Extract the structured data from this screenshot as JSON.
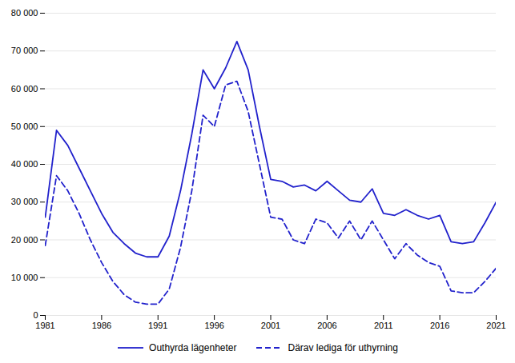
{
  "chart_data": {
    "type": "line",
    "x": [
      1981,
      1982,
      1983,
      1984,
      1985,
      1986,
      1987,
      1988,
      1989,
      1990,
      1991,
      1992,
      1993,
      1994,
      1995,
      1996,
      1997,
      1998,
      1999,
      2000,
      2001,
      2002,
      2003,
      2004,
      2005,
      2006,
      2007,
      2008,
      2009,
      2010,
      2011,
      2012,
      2013,
      2014,
      2015,
      2016,
      2017,
      2018,
      2019,
      2020,
      2021
    ],
    "series": [
      {
        "name": "Outhyrda lägenheter",
        "color": "#2222cc",
        "line_style": "solid",
        "values": [
          26000,
          49000,
          45000,
          39000,
          33000,
          27000,
          22000,
          19000,
          16500,
          15500,
          15500,
          21000,
          33000,
          48000,
          65000,
          60000,
          65500,
          72500,
          65000,
          50000,
          36000,
          35500,
          34000,
          34500,
          33000,
          35500,
          33000,
          30500,
          30000,
          33500,
          27000,
          26500,
          28000,
          26500,
          25500,
          26500,
          19500,
          19000,
          19500,
          24500,
          30000
        ]
      },
      {
        "name": "Därav lediga för uthyrning",
        "color": "#2222cc",
        "line_style": "dashed",
        "values": [
          18500,
          37000,
          33000,
          27000,
          20000,
          14000,
          9000,
          5500,
          3500,
          3000,
          3000,
          7000,
          18000,
          33000,
          53000,
          50000,
          61000,
          62000,
          54000,
          40000,
          26000,
          25500,
          20000,
          19000,
          25500,
          24500,
          20500,
          25000,
          20000,
          25000,
          20000,
          15000,
          19000,
          16000,
          14000,
          13000,
          6500,
          6000,
          6000,
          9000,
          12500
        ]
      }
    ],
    "xlim": [
      1981,
      2021
    ],
    "ylim": [
      0,
      80000
    ],
    "xticks": [
      1981,
      1986,
      1991,
      1996,
      2001,
      2006,
      2011,
      2016,
      2021
    ],
    "yticks": [
      0,
      {
        "value": 10000,
        "label": "10 000"
      },
      {
        "value": 20000,
        "label": "20 000"
      },
      {
        "value": 30000,
        "label": "30 000"
      },
      {
        "value": 40000,
        "label": "40 000"
      },
      {
        "value": 50000,
        "label": "50 000"
      },
      {
        "value": 60000,
        "label": "60 000"
      },
      {
        "value": 70000,
        "label": "70 000"
      },
      {
        "value": 80000,
        "label": "80 000"
      }
    ],
    "grid": true,
    "legend": "bottom"
  }
}
